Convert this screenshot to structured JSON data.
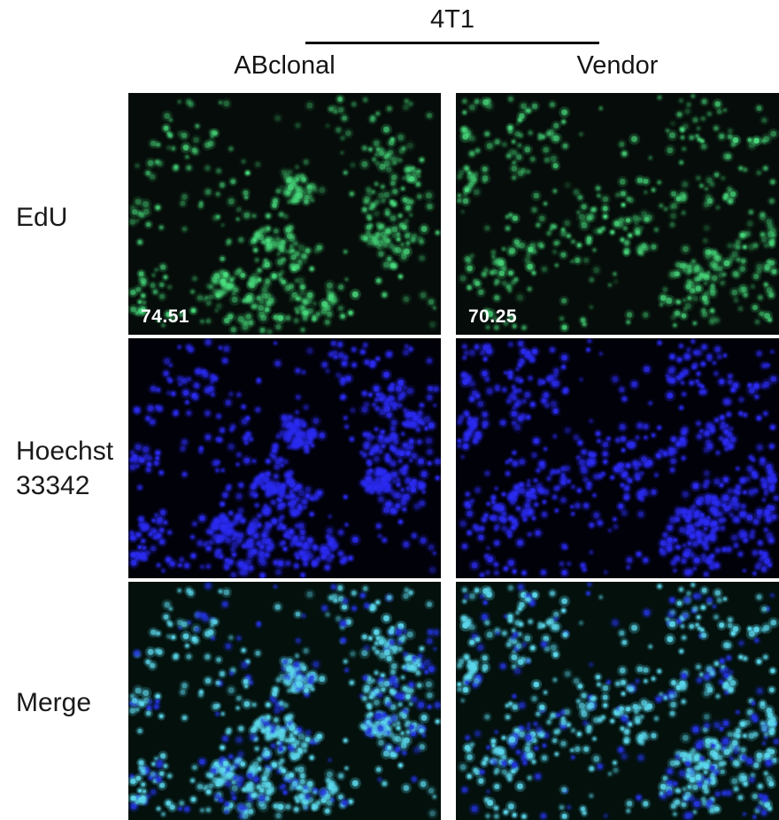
{
  "header": {
    "group_label": "4T1",
    "columns": [
      {
        "label": "ABclonal"
      },
      {
        "label": "Vendor"
      }
    ]
  },
  "rows": [
    {
      "label": "EdU"
    },
    {
      "label": "Hoechst 33342"
    },
    {
      "label": "Merge"
    }
  ],
  "panels": [
    {
      "row": "EdU",
      "column": "ABclonal",
      "channel": "edu",
      "overlay_value": "74.51"
    },
    {
      "row": "EdU",
      "column": "Vendor",
      "channel": "edu",
      "overlay_value": "70.25"
    },
    {
      "row": "Hoechst 33342",
      "column": "ABclonal",
      "channel": "hoechst"
    },
    {
      "row": "Hoechst 33342",
      "column": "Vendor",
      "channel": "hoechst"
    },
    {
      "row": "Merge",
      "column": "ABclonal",
      "channel": "merge"
    },
    {
      "row": "Merge",
      "column": "Vendor",
      "channel": "merge"
    }
  ],
  "colors": {
    "label_text": "#1a1a1a",
    "overlay_text": "#ffffff",
    "edu_signal": "#4ade7f",
    "hoechst_signal": "#2b2bf0",
    "merge_edu_positive": "#5cd8ec",
    "merge_nucleus": "#2334dd",
    "edu_background": "#060c09",
    "hoechst_background": "#010109",
    "merge_background": "#03100c"
  }
}
